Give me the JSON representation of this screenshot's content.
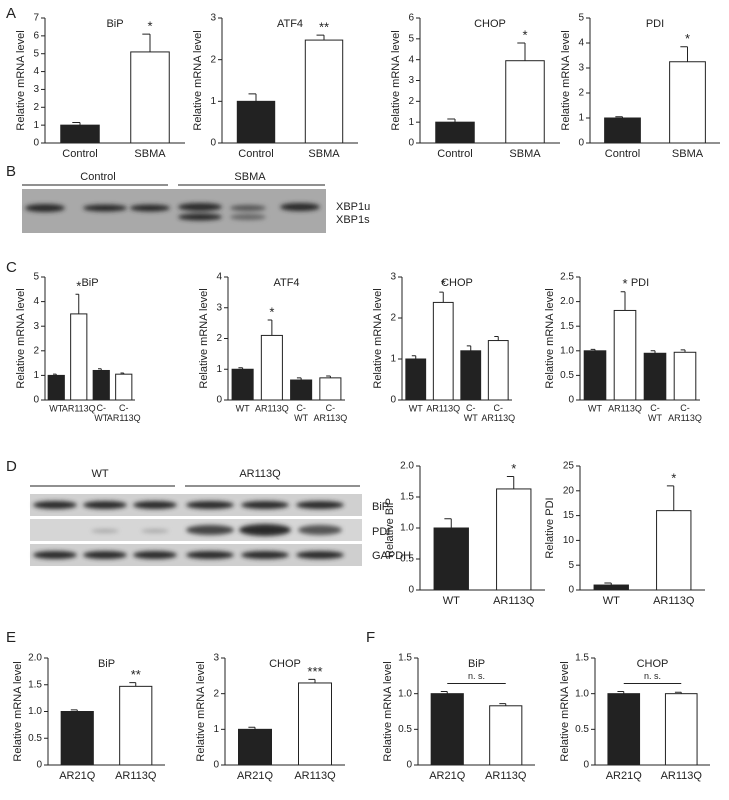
{
  "panel_labels": [
    "A",
    "B",
    "C",
    "D",
    "E",
    "F"
  ],
  "blots": [
    {
      "groups": [
        "Control",
        "SBMA"
      ],
      "bands": [
        "XBP1u",
        "XBP1s"
      ]
    },
    {
      "groups": [
        "WT",
        "AR113Q"
      ],
      "bands": [
        "BiP",
        "PDI",
        "GAPDH"
      ]
    }
  ],
  "chart_data": [
    {
      "type": "bar",
      "title": "BiP",
      "ylabel": "Relative mRNA level",
      "categories": [
        "Control",
        "SBMA"
      ],
      "values": [
        1.0,
        5.1
      ],
      "errors": [
        0.15,
        1.0
      ],
      "colors": [
        "#222222",
        "#ffffff"
      ],
      "value_annotations": [
        null,
        "*"
      ],
      "ylim": [
        0,
        7
      ],
      "yticks": [
        0,
        1,
        2,
        3,
        4,
        5,
        6,
        7
      ]
    },
    {
      "type": "bar",
      "title": "ATF4",
      "ylabel": "Relative mRNA level",
      "categories": [
        "Control",
        "SBMA"
      ],
      "values": [
        1.0,
        2.47
      ],
      "errors": [
        0.18,
        0.12
      ],
      "colors": [
        "#222222",
        "#ffffff"
      ],
      "value_annotations": [
        null,
        "**"
      ],
      "ylim": [
        0,
        3
      ],
      "yticks": [
        0,
        1,
        2,
        3
      ]
    },
    {
      "type": "bar",
      "title": "CHOP",
      "ylabel": "Relative mRNA level",
      "categories": [
        "Control",
        "SBMA"
      ],
      "values": [
        1.0,
        3.95
      ],
      "errors": [
        0.15,
        0.85
      ],
      "colors": [
        "#222222",
        "#ffffff"
      ],
      "value_annotations": [
        null,
        "*"
      ],
      "ylim": [
        0,
        6
      ],
      "yticks": [
        0,
        1,
        2,
        3,
        4,
        5,
        6
      ]
    },
    {
      "type": "bar",
      "title": "PDI",
      "ylabel": "Relative mRNA level",
      "categories": [
        "Control",
        "SBMA"
      ],
      "values": [
        1.0,
        3.25
      ],
      "errors": [
        0.05,
        0.6
      ],
      "colors": [
        "#222222",
        "#ffffff"
      ],
      "value_annotations": [
        null,
        "*"
      ],
      "ylim": [
        0,
        5
      ],
      "yticks": [
        0,
        1,
        2,
        3,
        4,
        5
      ]
    },
    {
      "type": "bar",
      "title": "BiP",
      "ylabel": "Relative mRNA level",
      "categories": [
        "WT",
        "AR113Q",
        "C-\nWT",
        "C-\nAR113Q"
      ],
      "values": [
        1.0,
        3.5,
        1.2,
        1.05
      ],
      "errors": [
        0.05,
        0.8,
        0.07,
        0.05
      ],
      "colors": [
        "#222222",
        "#ffffff",
        "#222222",
        "#ffffff"
      ],
      "value_annotations": [
        null,
        "*",
        null,
        null
      ],
      "ylim": [
        0,
        5
      ],
      "yticks": [
        0,
        1,
        2,
        3,
        4,
        5
      ]
    },
    {
      "type": "bar",
      "title": "ATF4",
      "ylabel": "Relative mRNA level",
      "categories": [
        "WT",
        "AR113Q",
        "C-\nWT",
        "C-\nAR113Q"
      ],
      "values": [
        1.0,
        2.1,
        0.65,
        0.72
      ],
      "errors": [
        0.05,
        0.5,
        0.07,
        0.06
      ],
      "colors": [
        "#222222",
        "#ffffff",
        "#222222",
        "#ffffff"
      ],
      "value_annotations": [
        null,
        "*",
        null,
        null
      ],
      "ylim": [
        0,
        4
      ],
      "yticks": [
        0,
        1,
        2,
        3,
        4
      ]
    },
    {
      "type": "bar",
      "title": "CHOP",
      "ylabel": "Relative mRNA level",
      "categories": [
        "WT",
        "AR113Q",
        "C-\nWT",
        "C-\nAR113Q"
      ],
      "values": [
        1.0,
        2.38,
        1.2,
        1.45
      ],
      "errors": [
        0.08,
        0.25,
        0.12,
        0.1
      ],
      "colors": [
        "#222222",
        "#ffffff",
        "#222222",
        "#ffffff"
      ],
      "value_annotations": [
        null,
        "*",
        null,
        null
      ],
      "ylim": [
        0,
        3
      ],
      "yticks": [
        0,
        1,
        2,
        3
      ]
    },
    {
      "type": "bar",
      "title": "PDI",
      "ylabel": "Relative mRNA level",
      "categories": [
        "WT",
        "AR113Q",
        "C-\nWT",
        "C-\nAR113Q"
      ],
      "values": [
        1.0,
        1.82,
        0.95,
        0.97
      ],
      "errors": [
        0.03,
        0.38,
        0.05,
        0.05
      ],
      "colors": [
        "#222222",
        "#ffffff",
        "#222222",
        "#ffffff"
      ],
      "value_annotations": [
        null,
        "*",
        null,
        null
      ],
      "ylim": [
        0,
        2.5
      ],
      "yticks": [
        0,
        0.5,
        {
          "value": 1,
          "label": "1.0"
        },
        1.5,
        {
          "value": 2,
          "label": "2.0"
        },
        2.5
      ]
    },
    {
      "type": "bar",
      "ylabel": "Relative BiP",
      "categories": [
        "WT",
        "AR113Q"
      ],
      "values": [
        1.0,
        1.63
      ],
      "errors": [
        0.15,
        0.2
      ],
      "colors": [
        "#222222",
        "#ffffff"
      ],
      "value_annotations": [
        null,
        "*"
      ],
      "ylim": [
        0,
        2
      ],
      "yticks": [
        0,
        0.5,
        {
          "value": 1,
          "label": "1.0"
        },
        1.5,
        {
          "value": 2,
          "label": "2.0"
        }
      ]
    },
    {
      "type": "bar",
      "ylabel": "Relative PDI",
      "categories": [
        "WT",
        "AR113Q"
      ],
      "values": [
        1.0,
        16
      ],
      "errors": [
        0.4,
        5
      ],
      "colors": [
        "#222222",
        "#ffffff"
      ],
      "value_annotations": [
        null,
        "*"
      ],
      "ylim": [
        0,
        25
      ],
      "yticks": [
        0,
        5,
        10,
        15,
        20,
        25
      ]
    },
    {
      "type": "bar",
      "title": "BiP",
      "ylabel": "Relative mRNA level",
      "categories": [
        "AR21Q",
        "AR113Q"
      ],
      "values": [
        1.0,
        1.47
      ],
      "errors": [
        0.03,
        0.07
      ],
      "colors": [
        "#222222",
        "#ffffff"
      ],
      "value_annotations": [
        null,
        "**"
      ],
      "ylim": [
        0,
        2
      ],
      "yticks": [
        0,
        0.5,
        {
          "value": 1,
          "label": "1.0"
        },
        1.5,
        {
          "value": 2,
          "label": "2.0"
        }
      ]
    },
    {
      "type": "bar",
      "title": "CHOP",
      "ylabel": "Relative mRNA level",
      "categories": [
        "AR21Q",
        "AR113Q"
      ],
      "values": [
        1.0,
        2.3
      ],
      "errors": [
        0.06,
        0.1
      ],
      "colors": [
        "#222222",
        "#ffffff"
      ],
      "value_annotations": [
        null,
        "***"
      ],
      "ylim": [
        0,
        3
      ],
      "yticks": [
        0,
        1,
        2,
        3
      ]
    },
    {
      "type": "bar",
      "title": "BiP",
      "ylabel": "Relative mRNA level",
      "categories": [
        "AR21Q",
        "AR113Q"
      ],
      "values": [
        1.0,
        0.83
      ],
      "errors": [
        0.03,
        0.03
      ],
      "colors": [
        "#222222",
        "#ffffff"
      ],
      "bracket_label": "n. s.",
      "ylim": [
        0,
        1.5
      ],
      "yticks": [
        0,
        0.5,
        {
          "value": 1,
          "label": "1.0"
        },
        1.5
      ]
    },
    {
      "type": "bar",
      "title": "CHOP",
      "ylabel": "Relative mRNA level",
      "categories": [
        "AR21Q",
        "AR113Q"
      ],
      "values": [
        1.0,
        1.0
      ],
      "errors": [
        0.03,
        0.02
      ],
      "colors": [
        "#222222",
        "#ffffff"
      ],
      "bracket_label": "n. s.",
      "ylim": [
        0,
        1.5
      ],
      "yticks": [
        0,
        0.5,
        {
          "value": 1,
          "label": "1.0"
        },
        1.5
      ]
    }
  ]
}
